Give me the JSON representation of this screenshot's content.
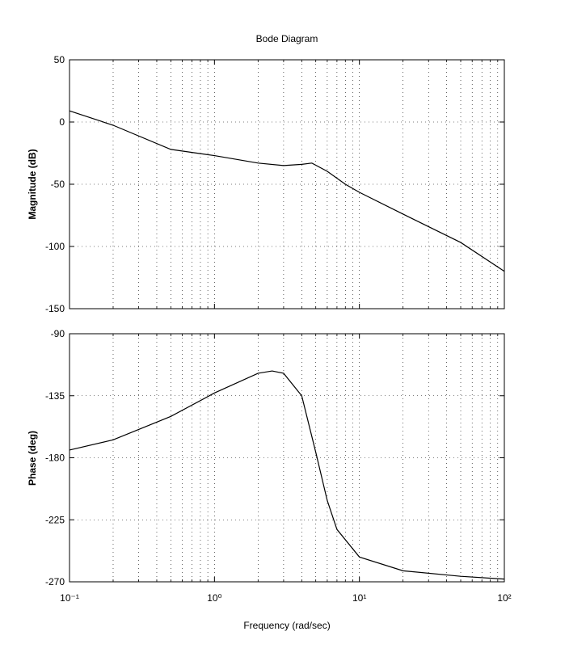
{
  "chart_data": [
    {
      "type": "line",
      "title": "Bode Diagram",
      "ylabel": "Magnitude (dB)",
      "xscale": "log",
      "grid": true,
      "color": "#000000",
      "x": [
        0.1,
        0.2,
        0.5,
        1,
        2,
        3,
        4,
        4.7,
        6,
        8,
        10,
        20,
        50,
        100
      ],
      "values": [
        9,
        -2.6,
        -22,
        -27,
        -33,
        -35,
        -34,
        -33,
        -39.6,
        -50,
        -56.5,
        -74,
        -96.8,
        -120
      ],
      "xlim": [
        0.1,
        100
      ],
      "ylim": [
        -150,
        50
      ],
      "yticks": [
        -150,
        -100,
        -50,
        0,
        50
      ]
    },
    {
      "type": "line",
      "xlabel": "Frequency (rad/sec)",
      "ylabel": "Phase (deg)",
      "xscale": "log",
      "grid": true,
      "color": "#000000",
      "x": [
        0.1,
        0.2,
        0.5,
        1,
        2,
        2.5,
        3,
        4,
        5,
        6,
        7,
        10,
        20,
        50,
        100
      ],
      "values": [
        -174.4,
        -167,
        -150,
        -133,
        -118.7,
        -117,
        -118.7,
        -135,
        -176,
        -211,
        -232,
        -252,
        -262,
        -266,
        -268
      ],
      "xlim": [
        0.1,
        100
      ],
      "ylim": [
        -270,
        -90
      ],
      "yticks": [
        -270,
        -225,
        -180,
        -135,
        -90
      ],
      "xticks": [
        {
          "value": 0.1,
          "label": "10⁻¹"
        },
        {
          "value": 1,
          "label": "10⁰"
        },
        {
          "value": 10,
          "label": "10¹"
        },
        {
          "value": 100,
          "label": "10²"
        }
      ]
    }
  ]
}
